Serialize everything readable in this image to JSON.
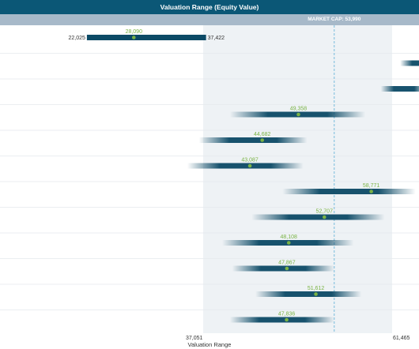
{
  "chart_data": {
    "type": "bar",
    "title": "Valuation Range (Equity Value)",
    "xlabel": "Valuation Range",
    "x_ticks": [
      37051,
      61465
    ],
    "x_tick_labels": [
      "37,051",
      "61,465"
    ],
    "market_cap": {
      "label": "MARKET CAP: 53,990",
      "value": 53990
    },
    "rows": [
      {
        "low": 22025,
        "mid": 28090,
        "high": 37422,
        "mid_label": "28,090",
        "low_label": "22,025",
        "high_label": "37,422",
        "style": "solid"
      },
      {
        "low": 62500,
        "mid": null,
        "high": 68000,
        "mid_label": "",
        "style": "fade"
      },
      {
        "low": 60000,
        "mid": null,
        "high": 66000,
        "mid_label": "",
        "style": "fade"
      },
      {
        "low": 40500,
        "mid": 49358,
        "high": 58000,
        "mid_label": "49,358",
        "style": "fade"
      },
      {
        "low": 36500,
        "mid": 44682,
        "high": 50500,
        "mid_label": "44,682",
        "style": "fade"
      },
      {
        "low": 35000,
        "mid": 43087,
        "high": 50000,
        "mid_label": "43,087",
        "style": "fade"
      },
      {
        "low": 47300,
        "mid": 58771,
        "high": 64500,
        "mid_label": "58,771",
        "style": "fade"
      },
      {
        "low": 43300,
        "mid": 52707,
        "high": 60500,
        "mid_label": "52,707",
        "style": "fade"
      },
      {
        "low": 39500,
        "mid": 48108,
        "high": 56500,
        "mid_label": "48,108",
        "style": "fade"
      },
      {
        "low": 40800,
        "mid": 47867,
        "high": 54000,
        "mid_label": "47,867",
        "style": "fade"
      },
      {
        "low": 43800,
        "mid": 51612,
        "high": 57500,
        "mid_label": "51,612",
        "style": "fade"
      },
      {
        "low": 40500,
        "mid": 47836,
        "high": 54000,
        "mid_label": "47,836",
        "style": "fade"
      }
    ],
    "colors": {
      "bar": "#0c4a66",
      "dot": "#7ab345",
      "label": "#7ab345",
      "band": "#eef2f5",
      "market_cap_line": "#5aaed6",
      "title_bg": "#0b5776",
      "subheader_bg": "#a7b9c9",
      "divider": "#e4e8ec"
    }
  }
}
